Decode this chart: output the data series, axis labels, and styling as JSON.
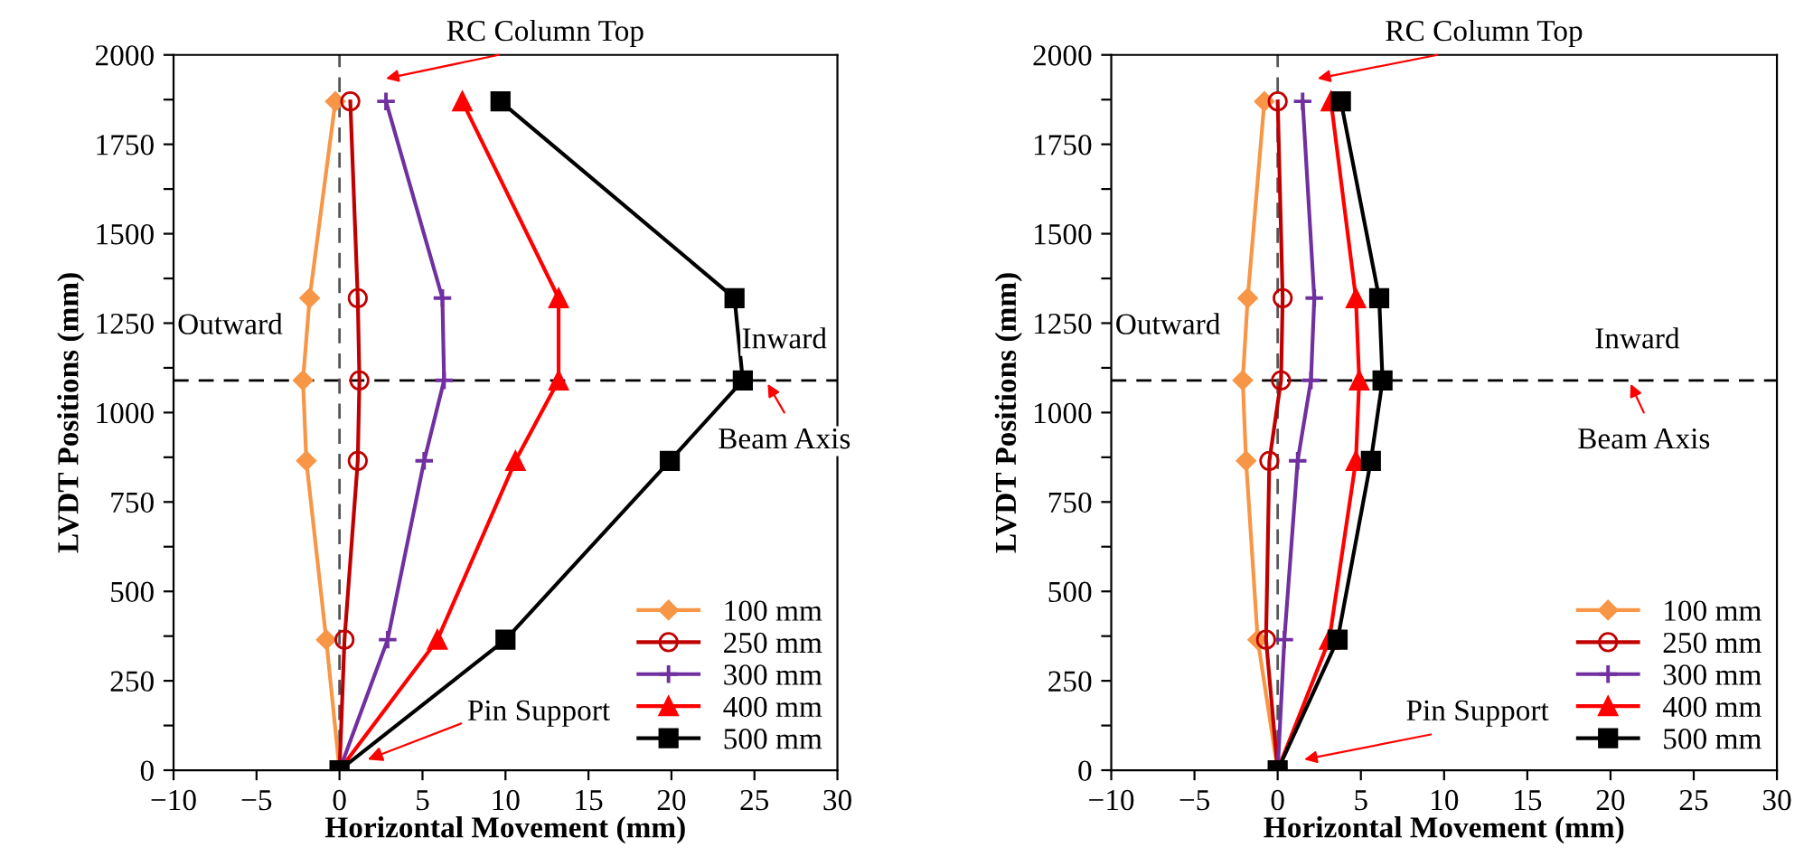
{
  "chart_data": [
    {
      "type": "line",
      "xlabel": "Horizontal Movement (mm)",
      "ylabel": "LVDT Positions (mm)",
      "xlim": [
        -10,
        30
      ],
      "ylim": [
        0,
        2000
      ],
      "xticks": [
        -10,
        -5,
        0,
        5,
        10,
        15,
        20,
        25,
        30
      ],
      "yticks": [
        0,
        {
          "value": 125,
          "label": null
        },
        250,
        {
          "value": 375,
          "label": null
        },
        500,
        {
          "value": 625,
          "label": null
        },
        750,
        {
          "value": 875,
          "label": null
        },
        1000,
        {
          "value": 1125,
          "label": null
        },
        1250,
        {
          "value": 1375,
          "label": null
        },
        1500,
        {
          "value": 1625,
          "label": null
        },
        1750,
        {
          "value": 1875,
          "label": null
        },
        2000
      ],
      "legend": "bottom right",
      "grid": false,
      "ref_lines": [
        {
          "axis": "y",
          "value": 1090,
          "color": "#000000",
          "line_style": "dashed"
        },
        {
          "axis": "x",
          "value": 0,
          "color": "#555555",
          "line_style": "dashed"
        }
      ],
      "annotations": [
        "RC Column Top",
        "Outward",
        "Inward",
        "Beam Axis",
        {
          "text": "Pin Support",
          "x": 1.7,
          "y": 30
        }
      ],
      "series": [
        {
          "name": "100 mm",
          "color": "#f79646",
          "marker": "diamond",
          "x": [
            0,
            -0.8,
            -2.0,
            -2.2,
            -1.8,
            -0.25
          ],
          "values": [
            0,
            365,
            865,
            1090,
            1320,
            1870
          ]
        },
        {
          "name": "250 mm",
          "color": "#c00000",
          "marker": "circle",
          "x": [
            0,
            0.3,
            1.1,
            1.2,
            1.1,
            0.65
          ],
          "values": [
            0,
            365,
            865,
            1090,
            1320,
            1870
          ]
        },
        {
          "name": "300 mm",
          "color": "#7030a0",
          "marker": "cross",
          "x": [
            0,
            2.9,
            5.1,
            6.3,
            6.2,
            2.8
          ],
          "values": [
            0,
            365,
            865,
            1090,
            1320,
            1870
          ]
        },
        {
          "name": "400 mm",
          "color": "#ff0000",
          "marker": "triangle",
          "x": [
            0,
            5.9,
            10.6,
            13.2,
            13.2,
            7.4
          ],
          "values": [
            0,
            365,
            865,
            1090,
            1320,
            1870
          ]
        },
        {
          "name": "500 mm",
          "color": "#000000",
          "marker": "square",
          "x": [
            0,
            10.0,
            19.9,
            24.3,
            23.8,
            9.7
          ],
          "values": [
            0,
            365,
            865,
            1090,
            1320,
            1870
          ]
        }
      ]
    },
    {
      "type": "line",
      "xlabel": "Horizontal Movement (mm)",
      "ylabel": "LVDT Positions (mm)",
      "xlim": [
        -10,
        30
      ],
      "ylim": [
        0,
        2000
      ],
      "xticks": [
        -10,
        -5,
        0,
        5,
        10,
        15,
        20,
        25,
        30
      ],
      "yticks": [
        0,
        {
          "value": 125,
          "label": null
        },
        250,
        {
          "value": 375,
          "label": null
        },
        500,
        {
          "value": 625,
          "label": null
        },
        750,
        {
          "value": 875,
          "label": null
        },
        1000,
        {
          "value": 1125,
          "label": null
        },
        1250,
        {
          "value": 1375,
          "label": null
        },
        1500,
        {
          "value": 1625,
          "label": null
        },
        1750,
        {
          "value": 1875,
          "label": null
        },
        2000
      ],
      "legend": "bottom right",
      "grid": false,
      "ref_lines": [
        {
          "axis": "y",
          "value": 1090,
          "color": "#000000",
          "line_style": "dashed"
        },
        {
          "axis": "x",
          "value": 0,
          "color": "#555555",
          "line_style": "dashed"
        }
      ],
      "annotations": [
        "RC Column Top",
        "Outward",
        "Inward",
        "Beam Axis",
        "Pin Support"
      ],
      "series": [
        {
          "name": "100 mm",
          "color": "#f79646",
          "marker": "diamond",
          "x": [
            0,
            -1.2,
            -1.9,
            -2.1,
            -1.8,
            -0.8
          ],
          "values": [
            0,
            365,
            865,
            1090,
            1320,
            1870
          ]
        },
        {
          "name": "250 mm",
          "color": "#c00000",
          "marker": "circle",
          "x": [
            0,
            -0.7,
            -0.5,
            0.2,
            0.3,
            0
          ],
          "values": [
            0,
            365,
            865,
            1090,
            1320,
            1870
          ]
        },
        {
          "name": "300 mm",
          "color": "#7030a0",
          "marker": "cross",
          "x": [
            0,
            0.4,
            1.2,
            2.0,
            2.2,
            1.5
          ],
          "values": [
            0,
            365,
            865,
            1090,
            1320,
            1870
          ]
        },
        {
          "name": "400 mm",
          "color": "#ff0000",
          "marker": "triangle",
          "x": [
            0,
            3.1,
            4.7,
            4.9,
            4.7,
            3.2
          ],
          "values": [
            0,
            365,
            865,
            1090,
            1320,
            1870
          ]
        },
        {
          "name": "500 mm",
          "color": "#000000",
          "marker": "square",
          "x": [
            0,
            3.6,
            5.6,
            6.3,
            6.1,
            3.8
          ],
          "values": [
            0,
            365,
            865,
            1090,
            1320,
            1870
          ]
        }
      ]
    }
  ]
}
